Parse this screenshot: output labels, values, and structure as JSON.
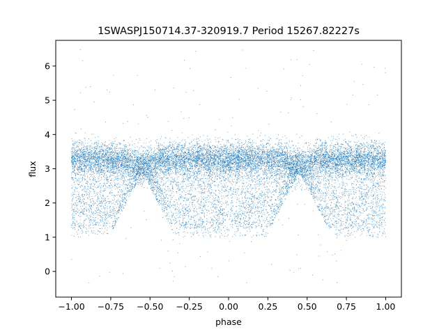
{
  "chart_data": {
    "type": "scatter",
    "title": "1SWASPJ150714.37-320919.7 Period 15267.82227s",
    "xlabel": "phase",
    "ylabel": "flux",
    "xlim": [
      -1.1,
      1.1
    ],
    "ylim": [
      -0.75,
      6.75
    ],
    "xticks": [
      -1.0,
      -0.75,
      -0.5,
      -0.25,
      0.0,
      0.25,
      0.5,
      0.75,
      1.0
    ],
    "xtick_labels": [
      "−1.00",
      "−0.75",
      "−0.50",
      "−0.25",
      "0.00",
      "0.25",
      "0.50",
      "0.75",
      "1.00"
    ],
    "yticks": [
      0,
      1,
      2,
      3,
      4,
      5,
      6
    ],
    "ytick_labels": [
      "0",
      "1",
      "2",
      "3",
      "4",
      "5",
      "6"
    ],
    "grid": false,
    "legend": "none",
    "marker_color": "#1f77b4",
    "phase_range": [
      -1.0,
      1.0
    ],
    "period_in_phase": 1.0,
    "upper_band": {
      "center": 3.3,
      "spread": 0.55
    },
    "dips": [
      {
        "phase": -0.55,
        "min_flux": 1.5,
        "note": "V-shaped gap in lower points"
      },
      {
        "phase": 0.45,
        "min_flux": 1.5,
        "note": "V-shaped gap in lower points"
      }
    ],
    "lower_band": {
      "min": 1.0,
      "max": 3.0
    },
    "outlier_range": [
      -0.4,
      6.5
    ]
  }
}
